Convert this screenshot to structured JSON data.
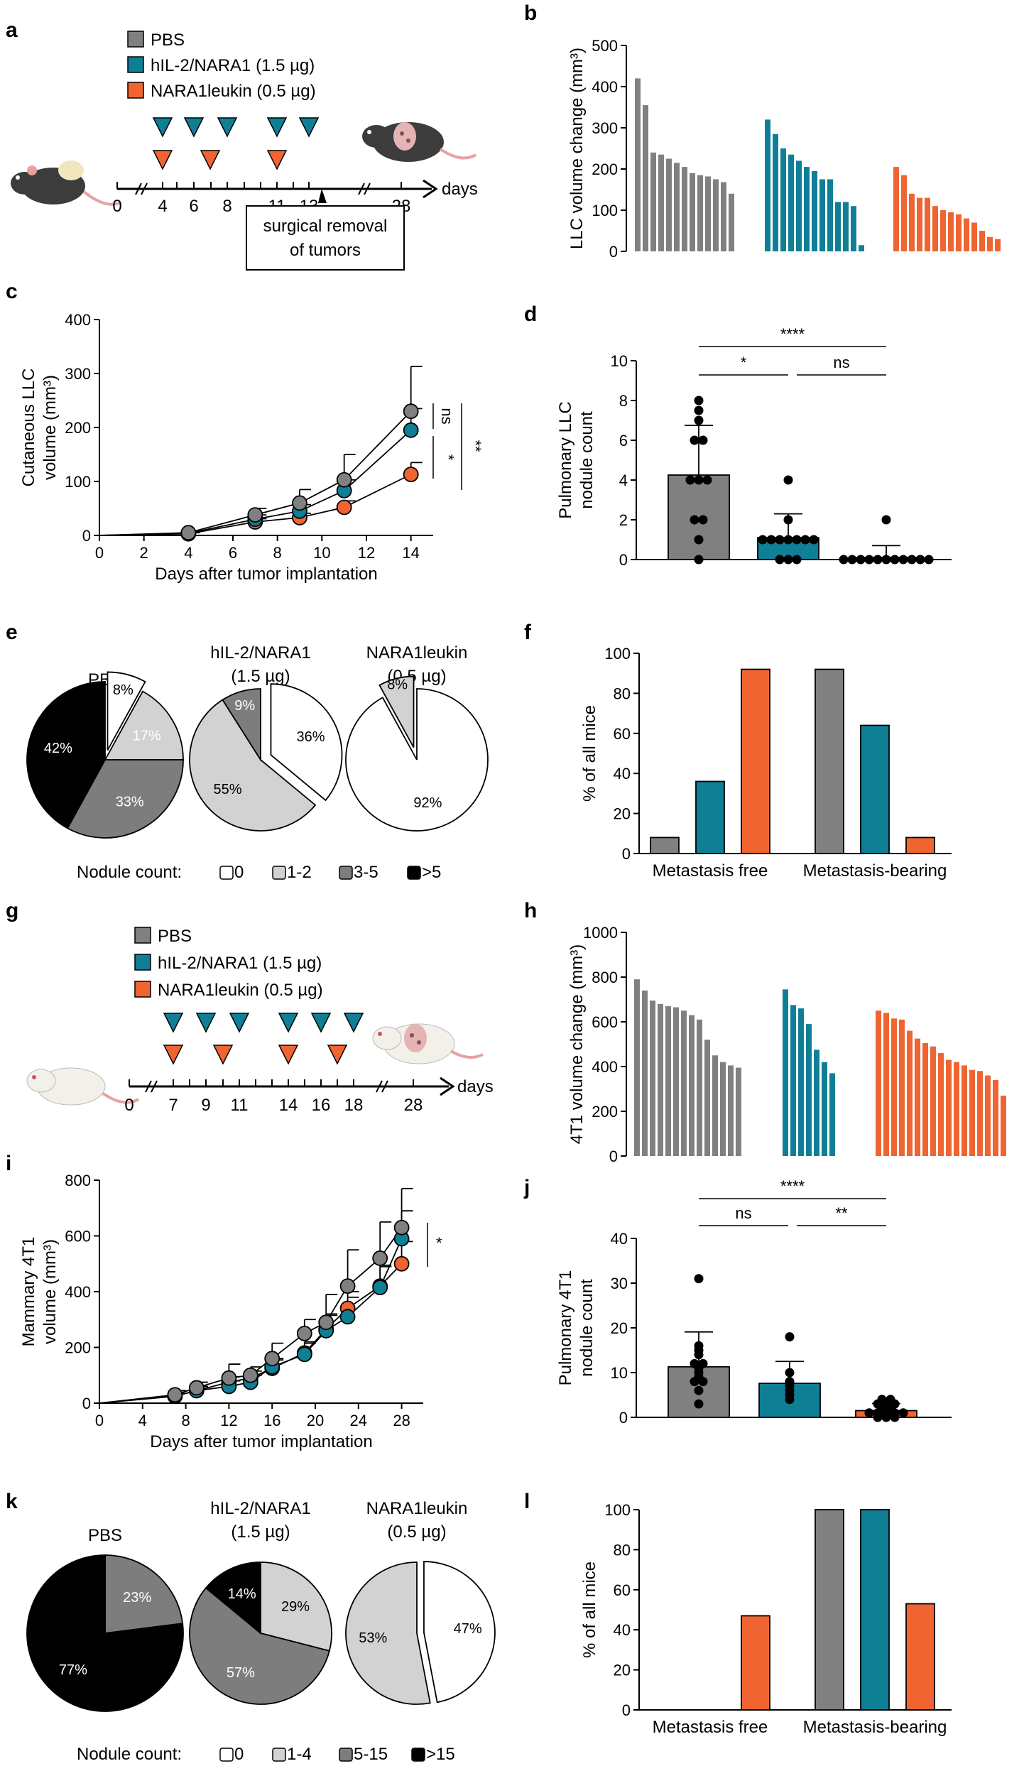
{
  "colors": {
    "pbs": "#808080",
    "hil2": "#0f7f96",
    "nara": "#ef6431",
    "light": "#d2d2d2",
    "dark": "#7d7d7d",
    "black": "#000000",
    "white": "#ffffff"
  },
  "panels": {
    "a": "a",
    "b": "b",
    "c": "c",
    "d": "d",
    "e": "e",
    "f": "f",
    "g": "g",
    "h": "h",
    "i": "i",
    "j": "j",
    "k": "k",
    "l": "l"
  },
  "legend": {
    "pbs": "PBS",
    "hil2": "hIL-2/NARA1 (1.5 µg)",
    "nara": "NARA1leukin (0.5 µg)"
  },
  "schema_a": {
    "ticks": [
      "0",
      "4",
      "6",
      "8",
      "11",
      "13",
      "28"
    ],
    "axis_label": "days",
    "box_line1": "surgical removal",
    "box_line2": "of tumors"
  },
  "schema_g": {
    "ticks": [
      "0",
      "7",
      "9",
      "11",
      "14",
      "16",
      "18",
      "28"
    ],
    "axis_label": "days"
  },
  "pie_titles": {
    "pbs": "PBS",
    "hil2_1": "hIL-2/NARA1",
    "hil2_2": "(1.5 µg)",
    "nara_1": "NARA1leukin",
    "nara_2": "(0.5 µg)"
  },
  "nodule_legend_e": {
    "title": "Nodule count:",
    "items": [
      "0",
      "1-2",
      "3-5",
      ">5"
    ]
  },
  "nodule_legend_k": {
    "title": "Nodule count:",
    "items": [
      "0",
      "1-4",
      "5-15",
      ">15"
    ]
  },
  "chart_data": [
    {
      "panel": "b",
      "type": "bar",
      "title": "",
      "ylabel": "LLC volume change (mm³)",
      "ylim": [
        0,
        500
      ],
      "yticks": [
        "0",
        "100",
        "200",
        "300",
        "400",
        "500"
      ],
      "series": [
        {
          "name": "PBS",
          "values": [
            420,
            355,
            240,
            235,
            225,
            215,
            205,
            190,
            185,
            182,
            175,
            168,
            140
          ]
        },
        {
          "name": "hIL-2/NARA1",
          "values": [
            320,
            285,
            250,
            235,
            220,
            205,
            195,
            175,
            175,
            120,
            120,
            110,
            15
          ]
        },
        {
          "name": "NARA1leukin",
          "values": [
            205,
            185,
            140,
            130,
            130,
            110,
            100,
            95,
            90,
            80,
            70,
            50,
            35,
            30
          ]
        }
      ]
    },
    {
      "panel": "c",
      "type": "line",
      "xlabel": "Days after tumor implantation",
      "ylabel_1": "Cutaneous LLC",
      "ylabel_2": "volume (mm³)",
      "xlim": [
        0,
        15
      ],
      "ylim": [
        0,
        400
      ],
      "xticks": [
        "0",
        "2",
        "4",
        "6",
        "8",
        "10",
        "12",
        "14"
      ],
      "yticks": [
        "0",
        "100",
        "200",
        "300",
        "400"
      ],
      "series": [
        {
          "name": "PBS",
          "x": [
            4,
            7,
            9,
            11,
            14
          ],
          "y": [
            5,
            38,
            60,
            103,
            230
          ],
          "err": [
            3,
            12,
            25,
            47,
            83
          ]
        },
        {
          "name": "hIL-2/NARA1",
          "x": [
            4,
            7,
            9,
            11,
            14
          ],
          "y": [
            4,
            30,
            45,
            83,
            195
          ],
          "err": [
            2,
            8,
            12,
            20,
            40
          ]
        },
        {
          "name": "NARA1leukin",
          "x": [
            4,
            7,
            9,
            11,
            14
          ],
          "y": [
            3,
            25,
            33,
            52,
            113
          ],
          "err": [
            2,
            6,
            8,
            12,
            22
          ]
        }
      ],
      "annotations": [
        "ns",
        "*",
        "**"
      ]
    },
    {
      "panel": "d",
      "type": "bar",
      "ylabel_1": "Pulmonary LLC",
      "ylabel_2": "nodule count",
      "ylim": [
        0,
        10
      ],
      "yticks": [
        "0",
        "2",
        "4",
        "6",
        "8",
        "10"
      ],
      "categories": [
        "PBS",
        "hIL-2/NARA1",
        "NARA1leukin"
      ],
      "values": [
        4.25,
        1.1,
        0.1
      ],
      "err": [
        2.5,
        1.2,
        0.6
      ],
      "points": [
        [
          8,
          7.5,
          7,
          6,
          6,
          4,
          4,
          4,
          2,
          2,
          1,
          0
        ],
        [
          4,
          2,
          1,
          1,
          1,
          1,
          1,
          1,
          1,
          0,
          0,
          0
        ],
        [
          2,
          0,
          0,
          0,
          0,
          0,
          0,
          0,
          0,
          0,
          0,
          0
        ]
      ],
      "significance": [
        "****",
        "*",
        "ns"
      ]
    },
    {
      "panel": "e",
      "type": "pie",
      "pies": [
        {
          "name": "PBS",
          "slices": [
            {
              "label": "0",
              "value": 8,
              "text": "8%"
            },
            {
              "label": "1-2",
              "value": 17,
              "text": "17%"
            },
            {
              "label": "3-5",
              "value": 33,
              "text": "33%"
            },
            {
              "label": ">5",
              "value": 42,
              "text": "42%"
            }
          ]
        },
        {
          "name": "hIL-2/NARA1",
          "slices": [
            {
              "label": "0",
              "value": 36,
              "text": "36%"
            },
            {
              "label": "1-2",
              "value": 55,
              "text": "55%"
            },
            {
              "label": "3-5",
              "value": 9,
              "text": "9%"
            }
          ]
        },
        {
          "name": "NARA1leukin",
          "slices": [
            {
              "label": "0",
              "value": 92,
              "text": "92%"
            },
            {
              "label": "1-2",
              "value": 8,
              "text": "8%"
            }
          ]
        }
      ]
    },
    {
      "panel": "f",
      "type": "bar",
      "ylabel": "% of all mice",
      "ylim": [
        0,
        100
      ],
      "yticks": [
        "0",
        "20",
        "40",
        "60",
        "80",
        "100"
      ],
      "categories": [
        "Metastasis free",
        "Metastasis-bearing"
      ],
      "series": [
        {
          "name": "PBS",
          "values": [
            8,
            92
          ]
        },
        {
          "name": "hIL-2/NARA1",
          "values": [
            36,
            64
          ]
        },
        {
          "name": "NARA1leukin",
          "values": [
            92,
            8
          ]
        }
      ]
    },
    {
      "panel": "h",
      "type": "bar",
      "ylabel": "4T1 volume change (mm³)",
      "ylim": [
        0,
        1000
      ],
      "yticks": [
        "0",
        "200",
        "400",
        "600",
        "800",
        "1000"
      ],
      "series": [
        {
          "name": "PBS",
          "values": [
            790,
            740,
            695,
            680,
            670,
            665,
            650,
            630,
            610,
            520,
            450,
            420,
            405,
            395
          ]
        },
        {
          "name": "hIL-2/NARA1",
          "values": [
            745,
            675,
            660,
            590,
            475,
            420,
            370
          ]
        },
        {
          "name": "NARA1leukin",
          "values": [
            650,
            640,
            615,
            610,
            560,
            525,
            505,
            490,
            460,
            430,
            420,
            405,
            385,
            380,
            360,
            340,
            270
          ]
        }
      ]
    },
    {
      "panel": "i",
      "type": "line",
      "xlabel": "Days after tumor implantation",
      "ylabel_1": "Mammary 4T1",
      "ylabel_2": "volume (mm³)",
      "xlim": [
        0,
        30
      ],
      "ylim": [
        0,
        800
      ],
      "xticks": [
        "0",
        "4",
        "8",
        "12",
        "16",
        "20",
        "24",
        "28"
      ],
      "yticks": [
        "0",
        "200",
        "400",
        "600",
        "800"
      ],
      "series": [
        {
          "name": "PBS",
          "x": [
            7,
            9,
            12,
            14,
            16,
            19,
            21,
            23,
            26,
            28
          ],
          "y": [
            30,
            55,
            90,
            100,
            160,
            250,
            290,
            420,
            520,
            630
          ],
          "err": [
            15,
            20,
            50,
            30,
            55,
            50,
            100,
            130,
            130,
            140
          ]
        },
        {
          "name": "hIL-2/NARA1",
          "x": [
            7,
            9,
            12,
            14,
            16,
            19,
            21,
            23,
            26,
            28
          ],
          "y": [
            25,
            45,
            60,
            75,
            130,
            175,
            260,
            310,
            415,
            590
          ],
          "err": [
            10,
            15,
            20,
            25,
            30,
            40,
            60,
            70,
            80,
            100
          ]
        },
        {
          "name": "NARA1leukin",
          "x": [
            7,
            9,
            12,
            14,
            16,
            19,
            21,
            23,
            26,
            28
          ],
          "y": [
            25,
            45,
            75,
            90,
            125,
            180,
            265,
            340,
            420,
            500
          ],
          "err": [
            10,
            15,
            20,
            25,
            30,
            40,
            50,
            60,
            70,
            80
          ]
        }
      ],
      "annotations": [
        "*"
      ]
    },
    {
      "panel": "j",
      "type": "bar",
      "ylabel_1": "Pulmonary 4T1",
      "ylabel_2": "nodule count",
      "ylim": [
        0,
        40
      ],
      "yticks": [
        "0",
        "10",
        "20",
        "30",
        "40"
      ],
      "categories": [
        "PBS",
        "hIL-2/NARA1",
        "NARA1leukin"
      ],
      "values": [
        11.3,
        7.6,
        1.5
      ],
      "err": [
        7.8,
        4.9,
        1.6
      ],
      "points": [
        [
          31,
          16,
          15,
          14,
          12,
          12,
          11,
          10,
          9,
          8,
          8,
          6,
          3
        ],
        [
          18,
          10,
          8,
          7,
          6,
          5,
          4
        ],
        [
          4,
          4,
          3,
          3,
          3,
          2,
          2,
          1,
          1,
          1,
          1,
          1,
          0,
          0,
          0
        ]
      ],
      "significance": [
        "****",
        "ns",
        "**"
      ]
    },
    {
      "panel": "k",
      "type": "pie",
      "pies": [
        {
          "name": "PBS",
          "slices": [
            {
              "label": "5-15",
              "value": 23,
              "text": "23%"
            },
            {
              "label": ">15",
              "value": 77,
              "text": "77%"
            }
          ]
        },
        {
          "name": "hIL-2/NARA1",
          "slices": [
            {
              "label": "1-4",
              "value": 29,
              "text": "29%"
            },
            {
              "label": "5-15",
              "value": 57,
              "text": "57%"
            },
            {
              "label": ">15",
              "value": 14,
              "text": "14%"
            }
          ]
        },
        {
          "name": "NARA1leukin",
          "slices": [
            {
              "label": "0",
              "value": 47,
              "text": "47%"
            },
            {
              "label": "1-4",
              "value": 53,
              "text": "53%"
            }
          ]
        }
      ]
    },
    {
      "panel": "l",
      "type": "bar",
      "ylabel": "% of all mice",
      "ylim": [
        0,
        100
      ],
      "yticks": [
        "0",
        "20",
        "40",
        "60",
        "80",
        "100"
      ],
      "categories": [
        "Metastasis free",
        "Metastasis-bearing"
      ],
      "series": [
        {
          "name": "PBS",
          "values": [
            0,
            100
          ]
        },
        {
          "name": "hIL-2/NARA1",
          "values": [
            0,
            100
          ]
        },
        {
          "name": "NARA1leukin",
          "values": [
            47,
            53
          ]
        }
      ]
    }
  ]
}
